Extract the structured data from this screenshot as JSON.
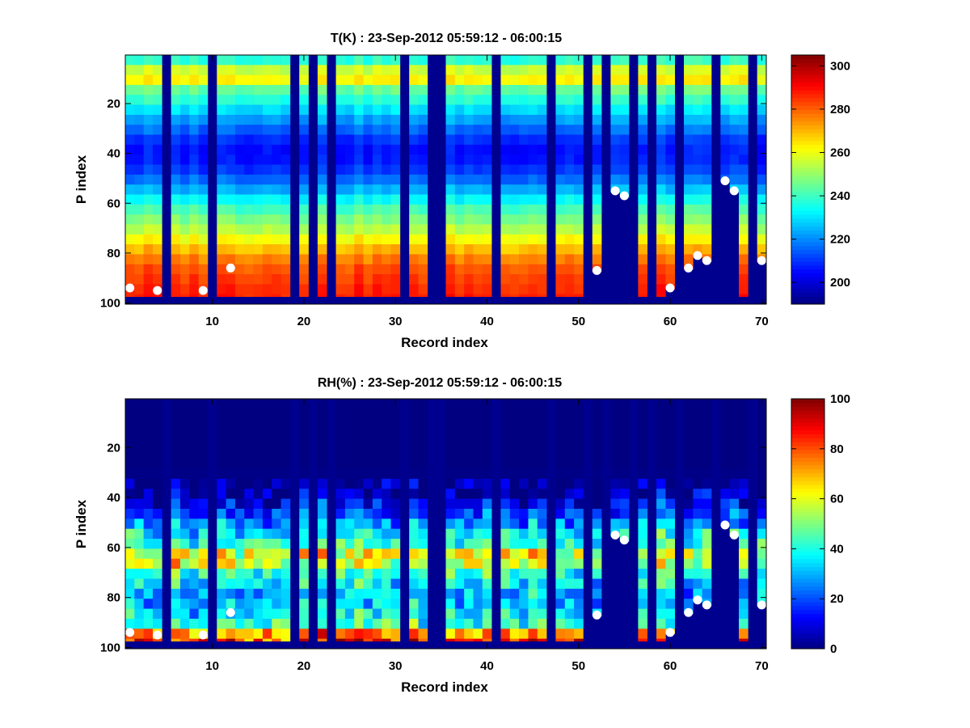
{
  "figure": {
    "background": "#ffffff",
    "colormap": "jet",
    "missing_color": "#00008f",
    "marker_color": "#ffffff"
  },
  "chart_data": [
    {
      "type": "heatmap",
      "title": "T(K) : 23-Sep-2012 05:59:12 - 06:00:15",
      "xlabel": "Record index",
      "ylabel": "P index",
      "xlim": [
        0.5,
        70.5
      ],
      "ylim": [
        0.5,
        100.5
      ],
      "y_reversed": true,
      "xticks": [
        10,
        20,
        30,
        40,
        50,
        60,
        70
      ],
      "yticks": [
        20,
        40,
        60,
        80,
        100
      ],
      "clim": [
        190,
        305
      ],
      "colorbar_ticks": [
        200,
        220,
        240,
        260,
        280,
        300
      ],
      "missing_columns": [
        5,
        10,
        19,
        21,
        23,
        31,
        34,
        35,
        41,
        47,
        51,
        53,
        56,
        58,
        61,
        65,
        69
      ],
      "surface_p_index": [
        97,
        97,
        97,
        97,
        97,
        97,
        97,
        97,
        97,
        97,
        97,
        97,
        97,
        97,
        97,
        97,
        97,
        97,
        97,
        97,
        97,
        97,
        97,
        97,
        97,
        97,
        97,
        97,
        97,
        97,
        97,
        97,
        97,
        97,
        97,
        97,
        97,
        97,
        97,
        97,
        97,
        97,
        97,
        97,
        97,
        97,
        97,
        97,
        97,
        97,
        97,
        87,
        97,
        55,
        57,
        97,
        97,
        97,
        97,
        94,
        97,
        86,
        81,
        83,
        83,
        51,
        55,
        97,
        97,
        83
      ],
      "profile": {
        "p_index": [
          1,
          5,
          8,
          10,
          12,
          15,
          20,
          25,
          30,
          35,
          40,
          45,
          50,
          55,
          60,
          65,
          70,
          75,
          80,
          85,
          90,
          97
        ],
        "t_k": [
          232,
          245,
          262,
          268,
          258,
          245,
          236,
          226,
          218,
          210,
          206,
          208,
          215,
          225,
          236,
          245,
          252,
          262,
          272,
          280,
          284,
          288
        ]
      },
      "markers": [
        {
          "x": 1,
          "y": 94
        },
        {
          "x": 4,
          "y": 95
        },
        {
          "x": 9,
          "y": 95
        },
        {
          "x": 12,
          "y": 86
        },
        {
          "x": 52,
          "y": 87
        },
        {
          "x": 54,
          "y": 55
        },
        {
          "x": 55,
          "y": 57
        },
        {
          "x": 60,
          "y": 94
        },
        {
          "x": 62,
          "y": 86
        },
        {
          "x": 63,
          "y": 81
        },
        {
          "x": 64,
          "y": 83
        },
        {
          "x": 66,
          "y": 51
        },
        {
          "x": 67,
          "y": 55
        },
        {
          "x": 70,
          "y": 83
        }
      ]
    },
    {
      "type": "heatmap",
      "title": "RH(%) : 23-Sep-2012 05:59:12 - 06:00:15",
      "xlabel": "Record index",
      "ylabel": "P index",
      "xlim": [
        0.5,
        70.5
      ],
      "ylim": [
        0.5,
        100.5
      ],
      "y_reversed": true,
      "xticks": [
        10,
        20,
        30,
        40,
        50,
        60,
        70
      ],
      "yticks": [
        20,
        40,
        60,
        80,
        100
      ],
      "clim": [
        0,
        100
      ],
      "colorbar_ticks": [
        0,
        20,
        40,
        60,
        80,
        100
      ],
      "missing_columns": [
        5,
        10,
        19,
        21,
        23,
        31,
        34,
        35,
        41,
        47,
        51,
        53,
        56,
        58,
        61,
        65,
        69
      ],
      "surface_p_index": [
        97,
        97,
        97,
        97,
        97,
        97,
        97,
        97,
        97,
        97,
        97,
        97,
        97,
        97,
        97,
        97,
        97,
        97,
        97,
        97,
        97,
        97,
        97,
        97,
        97,
        97,
        97,
        97,
        97,
        97,
        97,
        97,
        97,
        97,
        97,
        97,
        97,
        97,
        97,
        97,
        97,
        97,
        97,
        97,
        97,
        97,
        97,
        97,
        97,
        97,
        97,
        87,
        97,
        55,
        57,
        97,
        97,
        97,
        97,
        94,
        97,
        86,
        81,
        83,
        83,
        51,
        55,
        97,
        97,
        83
      ],
      "profile": {
        "p_index": [
          1,
          30,
          36,
          42,
          48,
          52,
          56,
          60,
          65,
          70,
          75,
          80,
          85,
          90,
          94,
          97
        ],
        "rh_pct": [
          0,
          0,
          4,
          10,
          20,
          30,
          40,
          45,
          50,
          42,
          36,
          30,
          34,
          40,
          55,
          70
        ]
      },
      "markers": [
        {
          "x": 1,
          "y": 94
        },
        {
          "x": 4,
          "y": 95
        },
        {
          "x": 9,
          "y": 95
        },
        {
          "x": 12,
          "y": 86
        },
        {
          "x": 52,
          "y": 87
        },
        {
          "x": 54,
          "y": 55
        },
        {
          "x": 55,
          "y": 57
        },
        {
          "x": 60,
          "y": 94
        },
        {
          "x": 62,
          "y": 86
        },
        {
          "x": 63,
          "y": 81
        },
        {
          "x": 64,
          "y": 83
        },
        {
          "x": 66,
          "y": 51
        },
        {
          "x": 67,
          "y": 55
        },
        {
          "x": 70,
          "y": 83
        }
      ]
    }
  ]
}
